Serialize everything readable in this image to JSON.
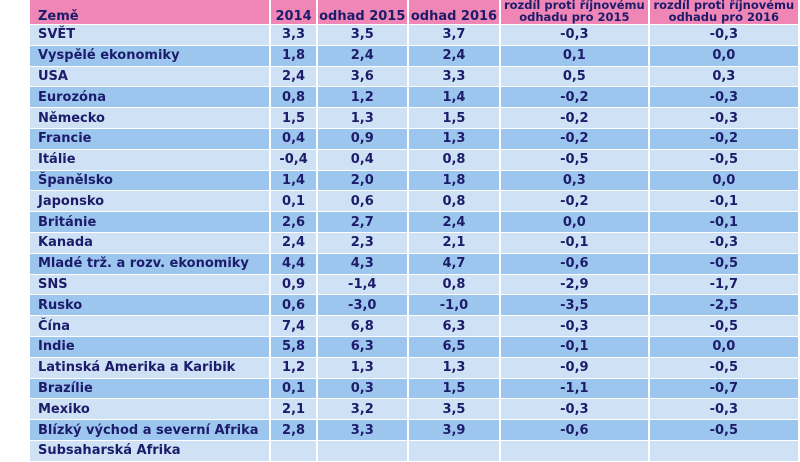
{
  "header": {
    "country": "Země",
    "y2014": "2014",
    "est2015": "odhad 2015",
    "est2016": "odhad 2016",
    "diff2015_line1": "rozdíl proti říjnovému",
    "diff2015_line2": "odhadu pro 2015",
    "diff2016_line1": "rozdíl proti říjnovému",
    "diff2016_line2": "odhadu pro 2016"
  },
  "colors": {
    "header": "#ef86b6",
    "row_light": "#cfe1f4",
    "row_dark": "#9dc6ef",
    "text": "#1c1c6b"
  },
  "rows": [
    [
      "SVĚT",
      "3,3",
      "3,5",
      "3,7",
      "-0,3",
      "-0,3"
    ],
    [
      "Vyspělé ekonomiky",
      "1,8",
      "2,4",
      "2,4",
      "0,1",
      "0,0"
    ],
    [
      "USA",
      "2,4",
      "3,6",
      "3,3",
      "0,5",
      "0,3"
    ],
    [
      "Eurozóna",
      "0,8",
      "1,2",
      "1,4",
      "-0,2",
      "-0,3"
    ],
    [
      "Německo",
      "1,5",
      "1,3",
      "1,5",
      "-0,2",
      "-0,3"
    ],
    [
      "Francie",
      "0,4",
      "0,9",
      "1,3",
      "-0,2",
      "-0,2"
    ],
    [
      "Itálie",
      "-0,4",
      "0,4",
      "0,8",
      "-0,5",
      "-0,5"
    ],
    [
      "Španělsko",
      "1,4",
      "2,0",
      "1,8",
      "0,3",
      "0,0"
    ],
    [
      "Japonsko",
      "0,1",
      "0,6",
      "0,8",
      "-0,2",
      "-0,1"
    ],
    [
      "Británie",
      "2,6",
      "2,7",
      "2,4",
      "0,0",
      "-0,1"
    ],
    [
      "Kanada",
      "2,4",
      "2,3",
      "2,1",
      "-0,1",
      "-0,3"
    ],
    [
      "Mladé trž. a rozv. ekonomiky",
      "4,4",
      "4,3",
      "4,7",
      "-0,6",
      "-0,5"
    ],
    [
      "SNS",
      "0,9",
      "-1,4",
      "0,8",
      "-2,9",
      "-1,7"
    ],
    [
      "Rusko",
      "0,6",
      "-3,0",
      "-1,0",
      "-3,5",
      "-2,5"
    ],
    [
      "Čína",
      "7,4",
      "6,8",
      "6,3",
      "-0,3",
      "-0,5"
    ],
    [
      "Indie",
      "5,8",
      "6,3",
      "6,5",
      "-0,1",
      "0,0"
    ],
    [
      "Latinská Amerika a Karibik",
      "1,2",
      "1,3",
      "1,3",
      "-0,9",
      "-0,5"
    ],
    [
      "Brazílie",
      "0,1",
      "0,3",
      "1,5",
      "-1,1",
      "-0,7"
    ],
    [
      "Mexiko",
      "2,1",
      "3,2",
      "3,5",
      "-0,3",
      "-0,3"
    ],
    [
      "Blízký východ a severní Afrika",
      "2,8",
      "3,3",
      "3,9",
      "-0,6",
      "-0,5"
    ],
    [
      "Subsaharská Afrika",
      "",
      "",
      "",
      "",
      ""
    ]
  ]
}
